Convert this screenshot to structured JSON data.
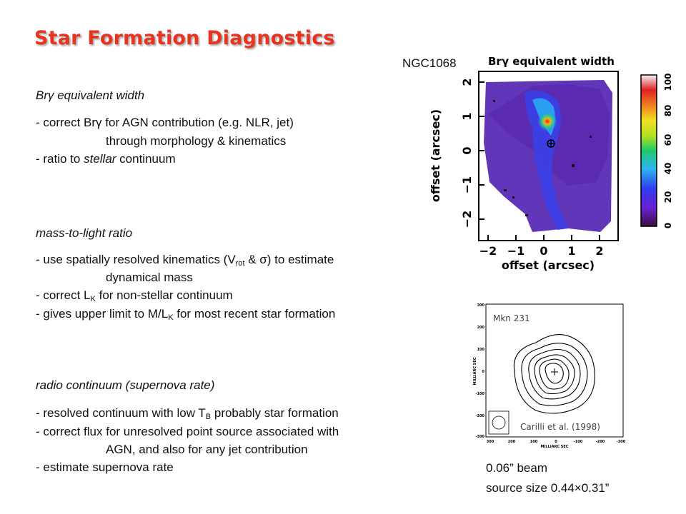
{
  "title": "Star Formation Diagnostics",
  "sections": [
    {
      "heading": "Brγ equivalent width",
      "lines": [
        "- correct Brγ for AGN contribution (e.g. NLR, jet)",
        "through morphology & kinematics",
        "- ratio to ",
        "stellar",
        " continuum"
      ]
    },
    {
      "heading": "mass-to-light ratio",
      "lines": [
        "- use spatially resolved kinematics (V",
        "rot",
        " & σ) to estimate",
        "dynamical mass",
        "- correct L",
        "K",
        " for non-stellar continuum",
        "- gives upper limit to M/L",
        "K",
        " for most recent star formation"
      ]
    },
    {
      "heading": "radio continuum (supernova rate)",
      "lines": [
        "- resolved continuum with low T",
        "B",
        " probably star formation",
        "- correct flux for unresolved point source associated with",
        "AGN, and also for any jet contribution",
        "- estimate supernova rate"
      ]
    }
  ],
  "figure1": {
    "object_label": "NGC1068",
    "title": "Brγ equivalent width",
    "xlabel": "offset (arcsec)",
    "ylabel": "offset (arcsec)",
    "xticks": [
      "−2",
      "−1",
      "0",
      "1",
      "2"
    ],
    "yticks": [
      "2",
      "1",
      "0",
      "−1",
      "−2"
    ],
    "colorbar_ticks": [
      "100",
      "80",
      "60",
      "40",
      "20",
      "0"
    ]
  },
  "figure2": {
    "object_label": "Mkn 231",
    "citation": "Carilli et al. (1998)",
    "ylabel": "MILLIARC SEC",
    "xlabel": "MILLIARC SEC",
    "yticks": [
      "300",
      "200",
      "100",
      "0",
      "-100",
      "-200",
      "-300"
    ],
    "xticks": [
      "300",
      "200",
      "100",
      "0",
      "-100",
      "-200",
      "-300"
    ]
  },
  "notes": {
    "beam": "0.06” beam",
    "source_size": "source size 0.44×0.31”"
  },
  "colors": {
    "title": "#e8331f"
  }
}
